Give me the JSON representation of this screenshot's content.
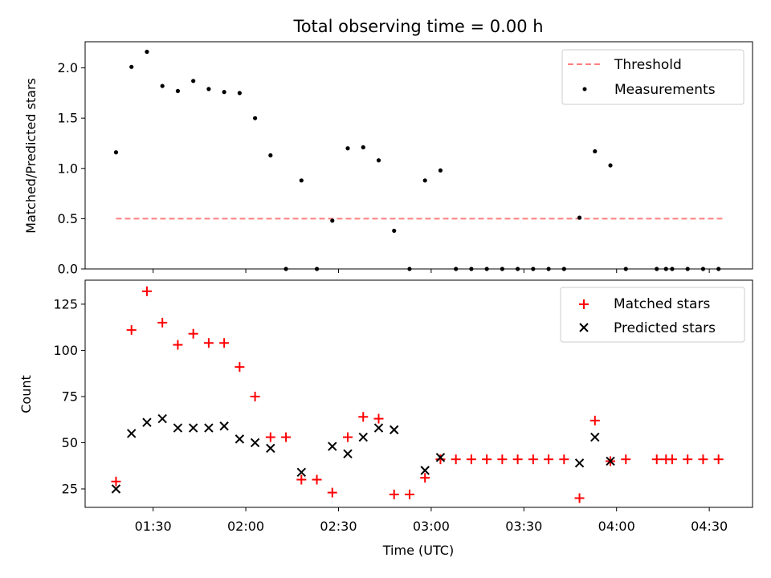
{
  "chart_data": [
    {
      "type": "scatter",
      "title": "Total observing time = 0.00 h",
      "xlabel": "",
      "ylabel": "Matched/Predicted stars",
      "ylim": [
        0,
        2.26
      ],
      "yticks": [
        0.0,
        0.5,
        1.0,
        1.5,
        2.0
      ],
      "ytick_labels": [
        "0.0",
        "0.5",
        "1.0",
        "1.5",
        "2.0"
      ],
      "legend_position": "top-right",
      "threshold": {
        "name": "Threshold",
        "value": 0.5,
        "x_start": "01:18",
        "x_end": "04:35",
        "color": "#ff7f7f"
      },
      "series": [
        {
          "name": "Measurements",
          "color": "#000000",
          "x": [
            "01:18",
            "01:23",
            "01:28",
            "01:33",
            "01:38",
            "01:43",
            "01:48",
            "01:53",
            "01:58",
            "02:03",
            "02:08",
            "02:13",
            "02:18",
            "02:23",
            "02:28",
            "02:33",
            "02:38",
            "02:43",
            "02:48",
            "02:53",
            "02:58",
            "03:03",
            "03:08",
            "03:13",
            "03:18",
            "03:23",
            "03:28",
            "03:33",
            "03:38",
            "03:43",
            "03:48",
            "03:53",
            "03:58",
            "04:03",
            "04:13",
            "04:16",
            "04:18",
            "04:23",
            "04:28",
            "04:33"
          ],
          "y": [
            1.16,
            2.01,
            2.16,
            1.82,
            1.77,
            1.87,
            1.79,
            1.76,
            1.75,
            1.5,
            1.13,
            0.0,
            0.88,
            0.0,
            0.48,
            1.2,
            1.21,
            1.08,
            0.38,
            0.0,
            0.88,
            0.98,
            0.0,
            0.0,
            0.0,
            0.0,
            0.0,
            0.0,
            0.0,
            0.0,
            0.51,
            1.17,
            1.03,
            0.0,
            0.0,
            0.0,
            0.0,
            0.0,
            0.0,
            0.0
          ]
        }
      ]
    },
    {
      "type": "scatter",
      "title": "",
      "xlabel": "Time (UTC)",
      "ylabel": "Count",
      "ylim": [
        15,
        138
      ],
      "yticks": [
        25,
        50,
        75,
        100,
        125
      ],
      "ytick_labels": [
        "25",
        "50",
        "75",
        "100",
        "125"
      ],
      "xlim": [
        "01:08",
        "04:44"
      ],
      "xticks": [
        "01:30",
        "02:00",
        "02:30",
        "03:00",
        "03:30",
        "04:00",
        "04:30"
      ],
      "xtick_labels": [
        "01:30",
        "02:00",
        "02:30",
        "03:00",
        "03:30",
        "04:00",
        "04:30"
      ],
      "legend_position": "top-right",
      "series": [
        {
          "name": "Matched stars",
          "marker": "plus",
          "color": "#ff0000",
          "x": [
            "01:18",
            "01:23",
            "01:28",
            "01:33",
            "01:38",
            "01:43",
            "01:48",
            "01:53",
            "01:58",
            "02:03",
            "02:08",
            "02:13",
            "02:18",
            "02:23",
            "02:28",
            "02:33",
            "02:38",
            "02:43",
            "02:48",
            "02:53",
            "02:58",
            "03:03",
            "03:08",
            "03:13",
            "03:18",
            "03:23",
            "03:28",
            "03:33",
            "03:38",
            "03:43",
            "03:48",
            "03:53",
            "03:58",
            "04:03",
            "04:13",
            "04:16",
            "04:18",
            "04:23",
            "04:28",
            "04:33"
          ],
          "y": [
            29,
            111,
            132,
            115,
            103,
            109,
            104,
            104,
            91,
            75,
            53,
            53,
            30,
            30,
            23,
            53,
            64,
            63,
            22,
            22,
            31,
            41,
            41,
            41,
            41,
            41,
            41,
            41,
            41,
            41,
            20,
            62,
            40,
            41,
            41,
            41,
            41,
            41,
            41,
            41
          ]
        },
        {
          "name": "Predicted stars",
          "marker": "x",
          "color": "#000000",
          "x": [
            "01:18",
            "01:23",
            "01:28",
            "01:33",
            "01:38",
            "01:43",
            "01:48",
            "01:53",
            "01:58",
            "02:03",
            "02:08",
            "02:18",
            "02:28",
            "02:33",
            "02:38",
            "02:43",
            "02:48",
            "02:58",
            "03:03",
            "03:48",
            "03:53",
            "03:58"
          ],
          "y": [
            25,
            55,
            61,
            63,
            58,
            58,
            58,
            59,
            52,
            50,
            47,
            34,
            48,
            44,
            53,
            58,
            57,
            35,
            42,
            39,
            53,
            40
          ]
        }
      ]
    }
  ]
}
